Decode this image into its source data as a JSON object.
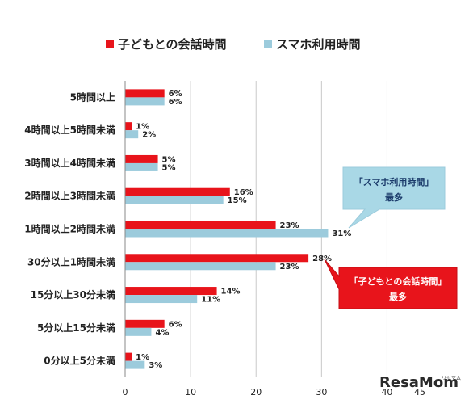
{
  "chart_data": {
    "type": "bar",
    "orientation": "horizontal",
    "categories": [
      "5時間以上",
      "4時間以上5時間未満",
      "3時間以上4時間未満",
      "2時間以上3時間未満",
      "1時間以上2時間未満",
      "30分以上1時間未満",
      "15分以上30分未満",
      "5分以上15分未満",
      "0分以上5分未満"
    ],
    "series": [
      {
        "name": "子どもとの会話時間",
        "color": "#e8141b",
        "values": [
          6,
          1,
          5,
          16,
          23,
          28,
          14,
          6,
          1
        ]
      },
      {
        "name": "スマホ利用時間",
        "color": "#9ccbdc",
        "values": [
          6,
          2,
          5,
          15,
          31,
          23,
          11,
          4,
          3
        ]
      }
    ],
    "value_suffix": "%",
    "xlim": [
      0,
      45
    ],
    "x_ticks": [
      "0",
      "10",
      "20",
      "30",
      "40",
      "45"
    ],
    "grid": true,
    "legend_position": "top-center",
    "annotations": [
      {
        "line1": "「スマホ利用時間」",
        "line2": "最多",
        "style": "light-blue callout"
      },
      {
        "line1": "「子どもとの会話時間」",
        "line2": "最多",
        "style": "red callout"
      }
    ]
  },
  "watermark": {
    "text": "ResaMom",
    "small": "リセマム"
  }
}
